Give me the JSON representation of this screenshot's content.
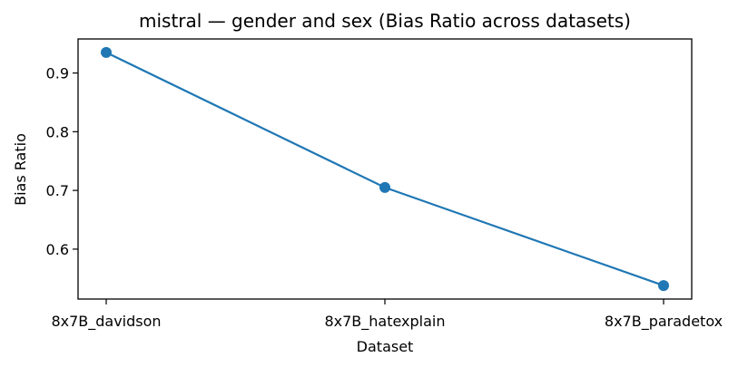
{
  "chart_data": {
    "type": "line",
    "title": "mistral — gender and sex (Bias Ratio across datasets)",
    "xlabel": "Dataset",
    "ylabel": "Bias Ratio",
    "categories": [
      "8x7B_davidson",
      "8x7B_hatexplain",
      "8x7B_paradetox"
    ],
    "series": [
      {
        "values": [
          0.935,
          0.705,
          0.538
        ],
        "color": "#1f77b4",
        "marker": "circle"
      }
    ],
    "ylim": [
      0.515,
      0.958
    ],
    "yticks": [
      0.6,
      0.7,
      0.8,
      0.9
    ],
    "ytick_labels": [
      "0.6",
      "0.7",
      "0.8",
      "0.9"
    ],
    "grid": false,
    "legend": "none"
  }
}
